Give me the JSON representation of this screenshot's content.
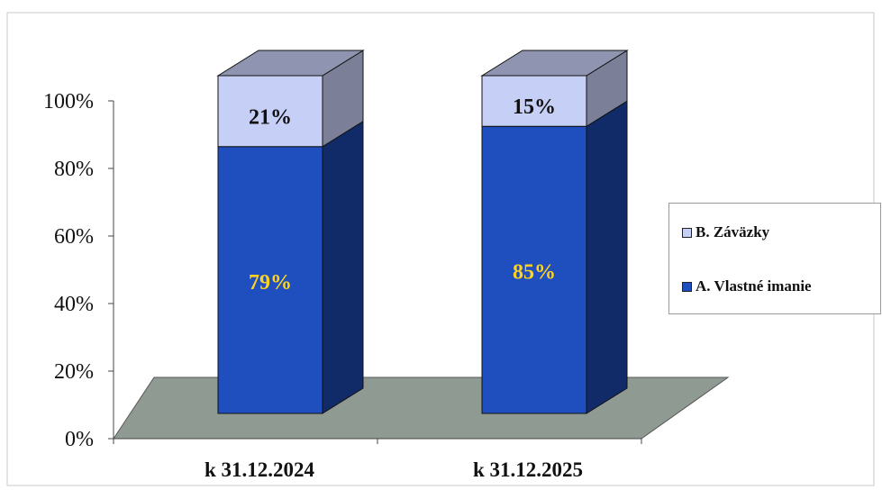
{
  "chart_data": {
    "type": "bar",
    "stacked": true,
    "percent_stacked": true,
    "categories": [
      "k 31.12.2024",
      "k 31.12.2025"
    ],
    "series": [
      {
        "name": "A. Vlastné imanie",
        "values": [
          79,
          85
        ],
        "labels": [
          "79%",
          "85%"
        ],
        "color": "#1f4fbf",
        "label_color": "#ffd21f"
      },
      {
        "name": "B. Záväzky",
        "values": [
          21,
          15
        ],
        "labels": [
          "21%",
          "15%"
        ],
        "color": "#c6cff5",
        "label_color": "#111111"
      }
    ],
    "ylim": [
      0,
      100
    ],
    "yticks": [
      "0%",
      "20%",
      "40%",
      "60%",
      "80%",
      "100%"
    ],
    "legend_position": "right",
    "grid": false,
    "floor_color": "#8f9a92"
  }
}
